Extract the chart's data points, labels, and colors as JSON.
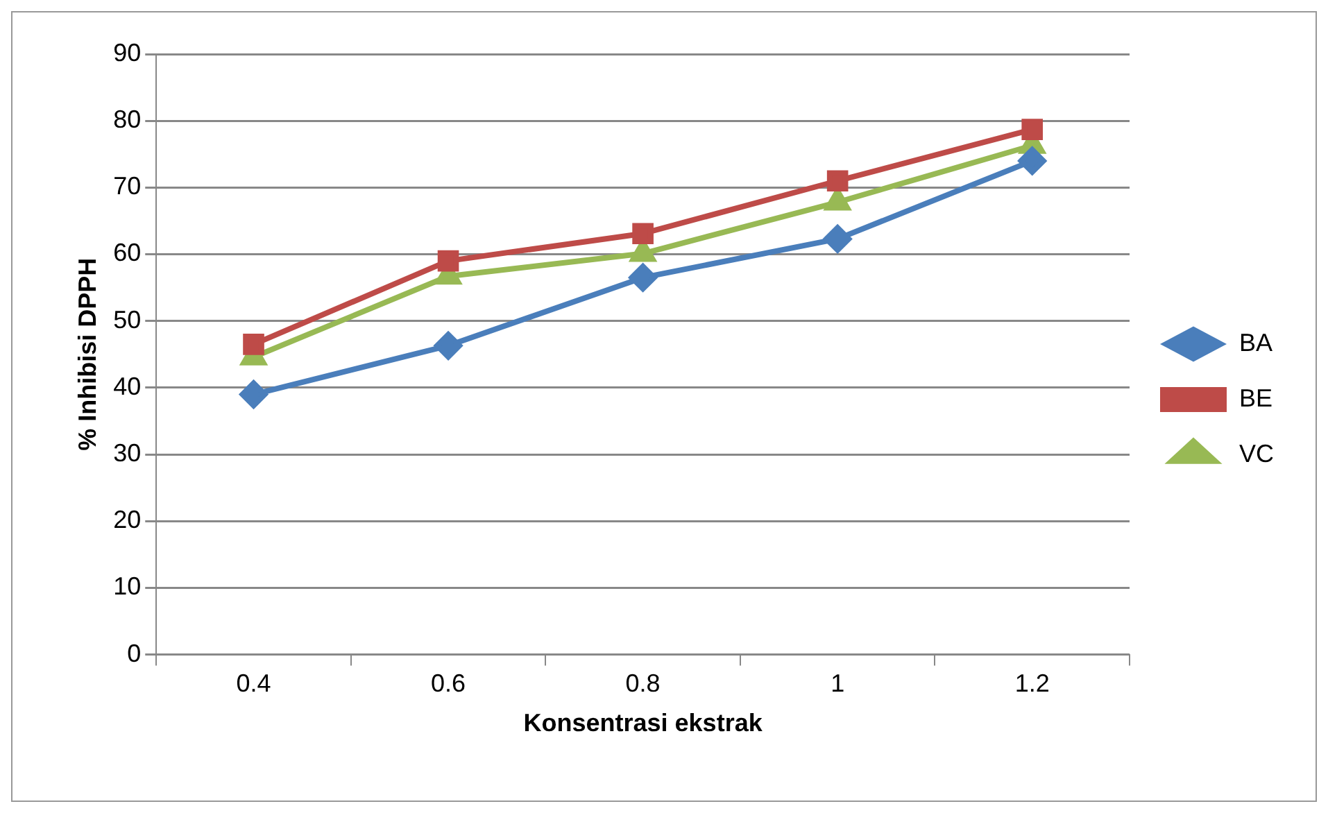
{
  "chart_data": {
    "type": "line",
    "xlabel": "Konsentrasi ekstrak",
    "ylabel": "% Inhibisi DPPH",
    "categories": [
      "0.4",
      "0.6",
      "0.8",
      "1",
      "1.2"
    ],
    "series": [
      {
        "name": "BA",
        "color": "#4a7ebb",
        "marker": "diamond",
        "values": [
          39.0,
          46.3,
          56.5,
          62.3,
          74.0
        ]
      },
      {
        "name": "BE",
        "color": "#be4b48",
        "marker": "square",
        "values": [
          46.5,
          59.0,
          63.1,
          71.0,
          78.7
        ]
      },
      {
        "name": "VC",
        "color": "#98b954",
        "marker": "triangle",
        "values": [
          44.6,
          56.7,
          60.1,
          67.8,
          76.3
        ]
      }
    ],
    "ylim": [
      0,
      90
    ],
    "yticks": [
      0,
      10,
      20,
      30,
      40,
      50,
      60,
      70,
      80,
      90
    ],
    "grid": "y",
    "legend": "right"
  }
}
